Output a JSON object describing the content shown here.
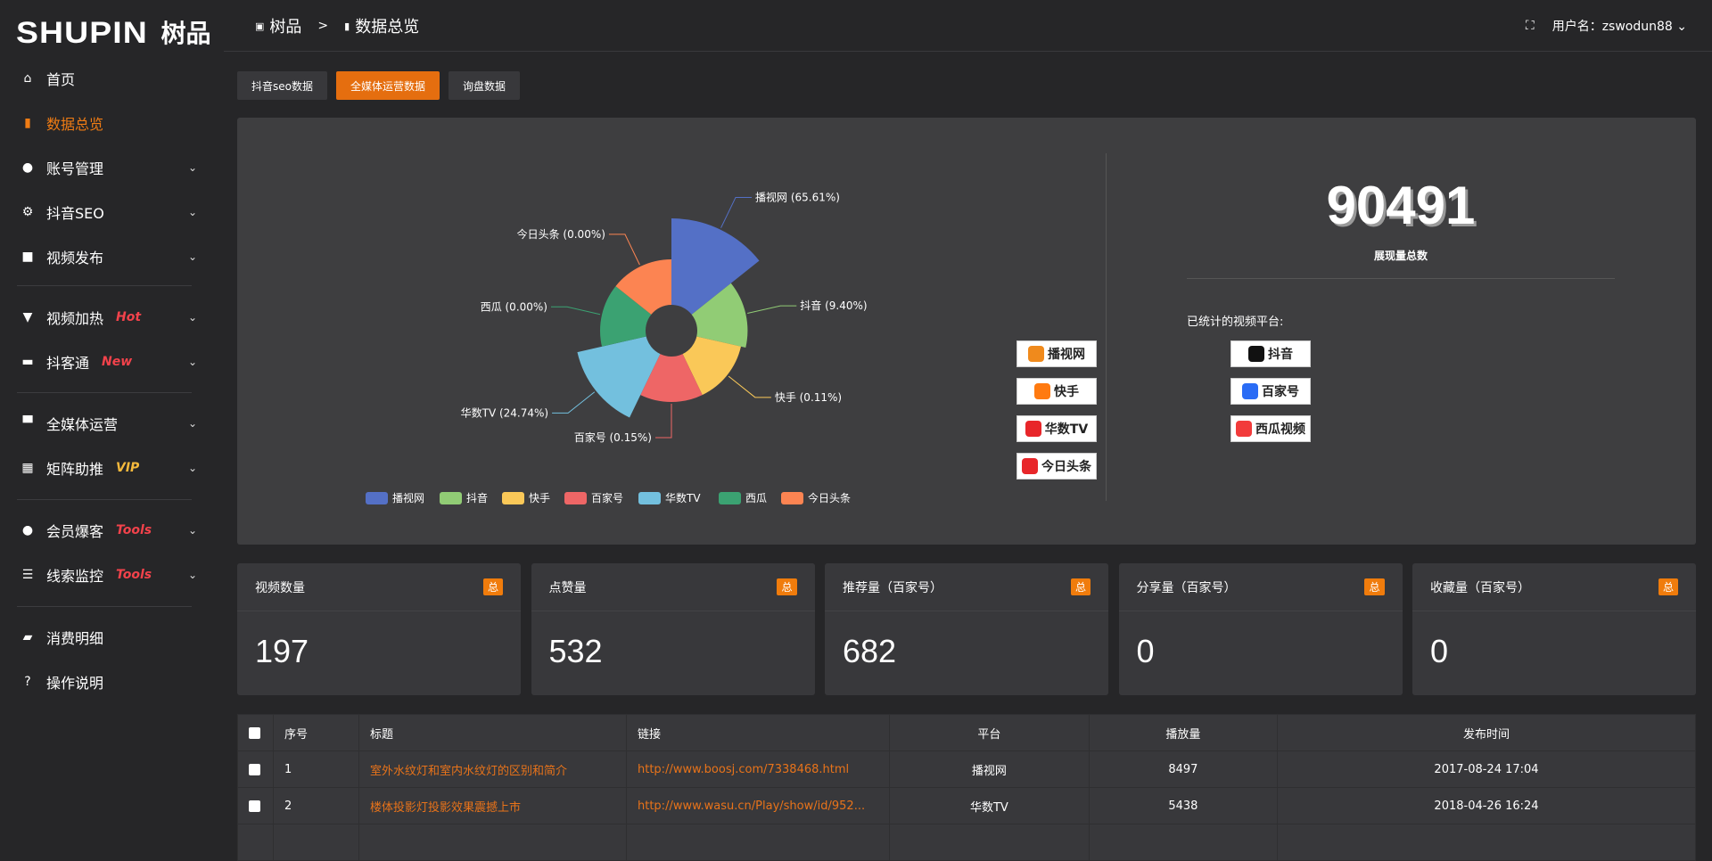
{
  "logo": {
    "en": "SHUPIN",
    "cn": "树品"
  },
  "sidebar": {
    "items": [
      {
        "label": "首页",
        "icon": "home-icon",
        "glyph": "⌂"
      },
      {
        "label": "数据总览",
        "icon": "bar-chart-icon",
        "glyph": "▮",
        "active": true
      },
      {
        "label": "账号管理",
        "icon": "user-icon",
        "glyph": "●",
        "chevron": true
      },
      {
        "label": "抖音SEO",
        "icon": "gear-icon",
        "glyph": "⚙",
        "chevron": true
      },
      {
        "label": "视频发布",
        "icon": "camera-icon",
        "glyph": "■",
        "chevron": true
      },
      {
        "label": "视频加热",
        "icon": "monitor-icon",
        "glyph": "▼",
        "chevron": true,
        "badge": "Hot",
        "badge_color": "#f2424b"
      },
      {
        "label": "抖客通",
        "icon": "chat-icon",
        "glyph": "▬",
        "chevron": true,
        "badge": "New",
        "badge_color": "#f2424b"
      },
      {
        "label": "全媒体运营",
        "icon": "desktop-icon",
        "glyph": "▀",
        "chevron": true
      },
      {
        "label": "矩阵助推",
        "icon": "grid-icon",
        "glyph": "▦",
        "chevron": true,
        "badge": "VIP",
        "badge_color": "#f5b93c"
      },
      {
        "label": "会员爆客",
        "icon": "member-icon",
        "glyph": "●",
        "chevron": true,
        "badge": "Tools",
        "badge_color": "#f2424b"
      },
      {
        "label": "线索监控",
        "icon": "sliders-icon",
        "glyph": "☰",
        "chevron": true,
        "badge": "Tools",
        "badge_color": "#f2424b"
      },
      {
        "label": "消费明细",
        "icon": "wallet-icon",
        "glyph": "▰"
      },
      {
        "label": "操作说明",
        "icon": "help-icon",
        "glyph": "?"
      }
    ]
  },
  "header": {
    "breadcrumb": [
      "树品",
      "数据总览"
    ],
    "separator": ">",
    "user_label": "用户名：zswodun88"
  },
  "tabs": [
    {
      "label": "抖音seo数据"
    },
    {
      "label": "全媒体运营数据",
      "active": true
    },
    {
      "label": "询盘数据"
    }
  ],
  "summary": {
    "total": "90491",
    "total_label": "展现量总数",
    "platforms_title": "已统计的视频平台:",
    "platforms": [
      {
        "name": "播视网",
        "color": "#f08a1c"
      },
      {
        "name": "抖音",
        "color": "#111"
      },
      {
        "name": "快手",
        "color": "#ff7a10"
      },
      {
        "name": "百家号",
        "color": "#2a6cf5"
      },
      {
        "name": "华数TV",
        "color": "#e8262a"
      },
      {
        "name": "西瓜视频",
        "color": "#f23b3b"
      },
      {
        "name": "今日头条",
        "color": "#e8262a"
      }
    ]
  },
  "chart_data": {
    "type": "pie",
    "rose": true,
    "categories": [
      "播视网",
      "抖音",
      "快手",
      "百家号",
      "华数TV",
      "西瓜",
      "今日头条"
    ],
    "values": [
      65.61,
      9.4,
      0.11,
      0.15,
      24.74,
      0.0,
      0.0
    ],
    "labels": [
      "播视网 (65.61%)",
      "抖音 (9.40%)",
      "快手 (0.11%)",
      "百家号 (0.15%)",
      "华数TV (24.74%)",
      "西瓜 (0.00%)",
      "今日头条 (0.00%)"
    ],
    "colors": [
      "#5470c6",
      "#91cc75",
      "#fac858",
      "#ee6666",
      "#73c0de",
      "#3ba272",
      "#fc8452"
    ],
    "legend": "bottom"
  },
  "cards": [
    {
      "title": "视频数量",
      "tag": "总",
      "value": "197"
    },
    {
      "title": "点赞量",
      "tag": "总",
      "value": "532"
    },
    {
      "title": "推荐量（百家号）",
      "tag": "总",
      "value": "682"
    },
    {
      "title": "分享量（百家号）",
      "tag": "总",
      "value": "0"
    },
    {
      "title": "收藏量（百家号）",
      "tag": "总",
      "value": "0"
    }
  ],
  "table": {
    "headers": [
      "序号",
      "标题",
      "链接",
      "平台",
      "播放量",
      "发布时间"
    ],
    "rows": [
      {
        "no": "1",
        "title": "室外水纹灯和室内水纹灯的区别和简介",
        "link": "http://www.boosj.com/7338468.html",
        "platform": "播视网",
        "plays": "8497",
        "time": "2017-08-24 17:04"
      },
      {
        "no": "2",
        "title": "楼体投影灯投影效果震撼上市",
        "link": "http://www.wasu.cn/Play/show/id/952...",
        "platform": "华数TV",
        "plays": "5438",
        "time": "2018-04-26 16:24"
      }
    ]
  }
}
